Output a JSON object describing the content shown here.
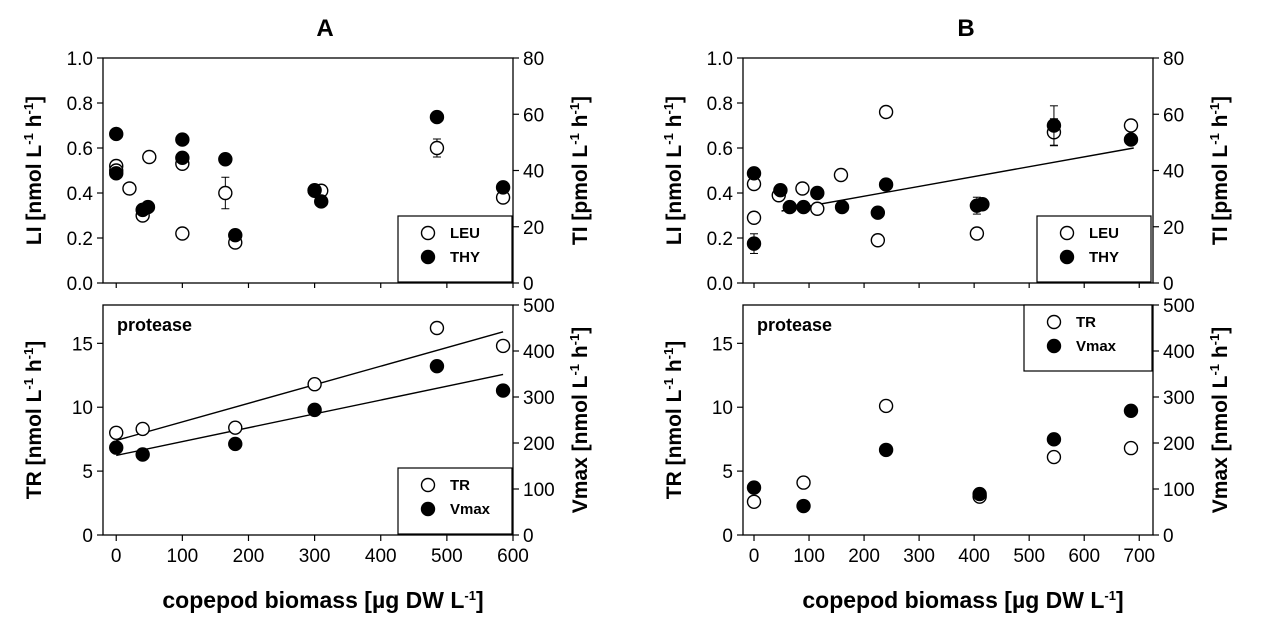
{
  "chart_data": [
    {
      "panel": "A",
      "type": "scatter",
      "title": "A",
      "xlabel": "",
      "ylabel": "LI [nmol L⁻¹ h⁻¹]",
      "y2label": "TI [pmol L⁻¹ h⁻¹]",
      "xlim": [
        -20,
        600
      ],
      "ylim": [
        0,
        1.0
      ],
      "y2lim": [
        0,
        80
      ],
      "yticks": [
        "0.0",
        "0.2",
        "0.4",
        "0.6",
        "0.8",
        "1.0"
      ],
      "y2ticks": [
        "0",
        "20",
        "40",
        "60",
        "80"
      ],
      "legend": {
        "position": "bottom-right",
        "entries": [
          "LEU",
          "THY"
        ]
      },
      "series": [
        {
          "name": "LEU",
          "axis": "left",
          "marker": "open-circle",
          "x": [
            0,
            0,
            20,
            40,
            50,
            100,
            100,
            165,
            180,
            300,
            310,
            485,
            585
          ],
          "y": [
            0.52,
            0.5,
            0.42,
            0.3,
            0.56,
            0.22,
            0.53,
            0.4,
            0.18,
            0.41,
            0.41,
            0.6,
            0.38
          ],
          "yerr": [
            0,
            0,
            0,
            0,
            0,
            0,
            0,
            0.07,
            0,
            0,
            0,
            0.04,
            0
          ]
        },
        {
          "name": "THY",
          "axis": "right",
          "marker": "filled-circle",
          "x": [
            0,
            0,
            40,
            48,
            100,
            100,
            165,
            180,
            300,
            310,
            485,
            585
          ],
          "y": [
            53,
            39,
            26,
            27,
            51,
            44.5,
            44,
            17,
            33,
            29,
            59,
            34
          ]
        }
      ]
    },
    {
      "panel": "A-bottom",
      "type": "scatter",
      "title": "",
      "annotation": "protease",
      "xlabel": "copepod biomass [µg DW L⁻¹]",
      "ylabel": "TR [nmol L⁻¹ h⁻¹]",
      "y2label": "Vmax [nmol L⁻¹ h⁻¹]",
      "xlim": [
        -20,
        600
      ],
      "xticks": [
        "0",
        "100",
        "200",
        "300",
        "400",
        "500",
        "600"
      ],
      "ylim": [
        0,
        18
      ],
      "y2lim": [
        0,
        500
      ],
      "yticks": [
        "0",
        "5",
        "10",
        "15"
      ],
      "y2ticks": [
        "0",
        "100",
        "200",
        "300",
        "400",
        "500"
      ],
      "legend": {
        "position": "bottom-right",
        "entries": [
          "TR",
          "Vmax"
        ]
      },
      "series": [
        {
          "name": "TR",
          "axis": "left",
          "marker": "open-circle",
          "x": [
            0,
            40,
            180,
            300,
            485,
            585
          ],
          "y": [
            8.0,
            8.3,
            8.4,
            11.8,
            16.2,
            14.8
          ]
        },
        {
          "name": "Vmax",
          "axis": "right",
          "marker": "filled-circle",
          "x": [
            0,
            40,
            180,
            300,
            485,
            585
          ],
          "y": [
            190,
            175,
            198,
            272,
            367,
            314
          ]
        }
      ],
      "fits": [
        {
          "series": "TR",
          "axis": "left",
          "x": [
            0,
            585
          ],
          "y": [
            7.4,
            15.9
          ]
        },
        {
          "series": "Vmax",
          "axis": "right",
          "x": [
            0,
            585
          ],
          "y": [
            173,
            349
          ]
        }
      ]
    },
    {
      "panel": "B",
      "type": "scatter",
      "title": "B",
      "xlabel": "",
      "ylabel": "LI [nmol L⁻¹ h⁻¹]",
      "y2label": "TI [pmol L⁻¹ h⁻¹]",
      "xlim": [
        -20,
        725
      ],
      "ylim": [
        0,
        1.0
      ],
      "y2lim": [
        0,
        80
      ],
      "yticks": [
        "0.0",
        "0.2",
        "0.4",
        "0.6",
        "0.8",
        "1.0"
      ],
      "y2ticks": [
        "0",
        "20",
        "40",
        "60",
        "80"
      ],
      "legend": {
        "position": "bottom-right",
        "entries": [
          "LEU",
          "THY"
        ]
      },
      "series": [
        {
          "name": "LEU",
          "axis": "left",
          "marker": "open-circle",
          "x": [
            0,
            0,
            45,
            88,
            115,
            158,
            225,
            240,
            405,
            545,
            685
          ],
          "y": [
            0.44,
            0.29,
            0.39,
            0.42,
            0.33,
            0.48,
            0.19,
            0.76,
            0.22,
            0.67,
            0.7
          ],
          "yerr": [
            0,
            0,
            0,
            0,
            0,
            0,
            0,
            0,
            0,
            0.06,
            0
          ]
        },
        {
          "name": "THY",
          "axis": "right",
          "marker": "filled-circle",
          "x": [
            0,
            0,
            48,
            65,
            90,
            115,
            160,
            225,
            240,
            405,
            415,
            545,
            685
          ],
          "y": [
            39,
            14,
            33,
            27,
            27,
            32,
            27,
            25,
            35,
            27.5,
            28,
            56,
            51
          ],
          "yerr": [
            0,
            3.5,
            0,
            0,
            0,
            0,
            0,
            0,
            0,
            3,
            0,
            7,
            0
          ]
        }
      ],
      "fits": [
        {
          "series": "LEU",
          "axis": "left",
          "x": [
            50,
            690
          ],
          "y": [
            0.32,
            0.6
          ]
        }
      ]
    },
    {
      "panel": "B-bottom",
      "type": "scatter",
      "title": "",
      "annotation": "protease",
      "xlabel": "copepod biomass [µg DW L⁻¹]",
      "ylabel": "TR [nmol L⁻¹ h⁻¹]",
      "y2label": "Vmax [nmol L⁻¹ h⁻¹]",
      "xlim": [
        -20,
        725
      ],
      "xticks": [
        "0",
        "100",
        "200",
        "300",
        "400",
        "500",
        "600",
        "700"
      ],
      "ylim": [
        0,
        18
      ],
      "y2lim": [
        0,
        500
      ],
      "yticks": [
        "0",
        "5",
        "10",
        "15"
      ],
      "y2ticks": [
        "0",
        "100",
        "200",
        "300",
        "400",
        "500"
      ],
      "legend": {
        "position": "top-right",
        "entries": [
          "TR",
          "Vmax"
        ]
      },
      "series": [
        {
          "name": "TR",
          "axis": "left",
          "marker": "open-circle",
          "x": [
            0,
            90,
            240,
            410,
            545,
            685
          ],
          "y": [
            2.6,
            4.1,
            10.1,
            3.0,
            6.1,
            6.8
          ]
        },
        {
          "name": "Vmax",
          "axis": "right",
          "marker": "filled-circle",
          "x": [
            0,
            90,
            240,
            410,
            545,
            685
          ],
          "y": [
            103,
            63,
            185,
            89,
            208,
            270
          ]
        }
      ]
    }
  ]
}
